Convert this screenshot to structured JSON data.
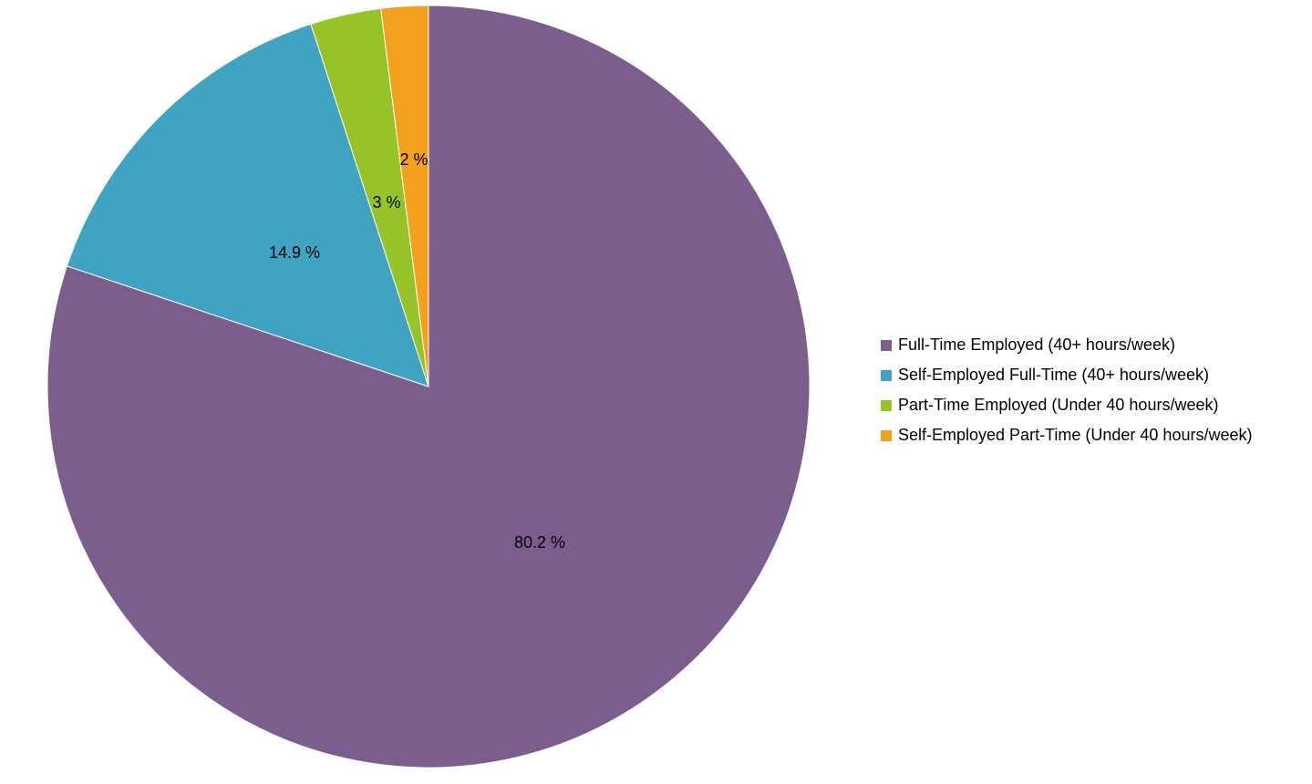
{
  "chart_data": {
    "type": "pie",
    "categories": [
      "Full-Time Employed (40+ hours/week)",
      "Self-Employed Full-Time (40+ hours/week)",
      "Part-Time Employed (Under 40 hours/week)",
      "Self-Employed Part-Time (Under 40 hours/week)"
    ],
    "values": [
      80.2,
      14.9,
      3,
      2
    ],
    "labels": [
      "80.2 %",
      "14.9 %",
      "3 %",
      "2 %"
    ],
    "colors": [
      "#7B5E8D",
      "#40A3C1",
      "#96C428",
      "#F2A11E"
    ],
    "start": "12 o'clock",
    "direction": "clockwise",
    "legend_position": "right",
    "title": ""
  }
}
